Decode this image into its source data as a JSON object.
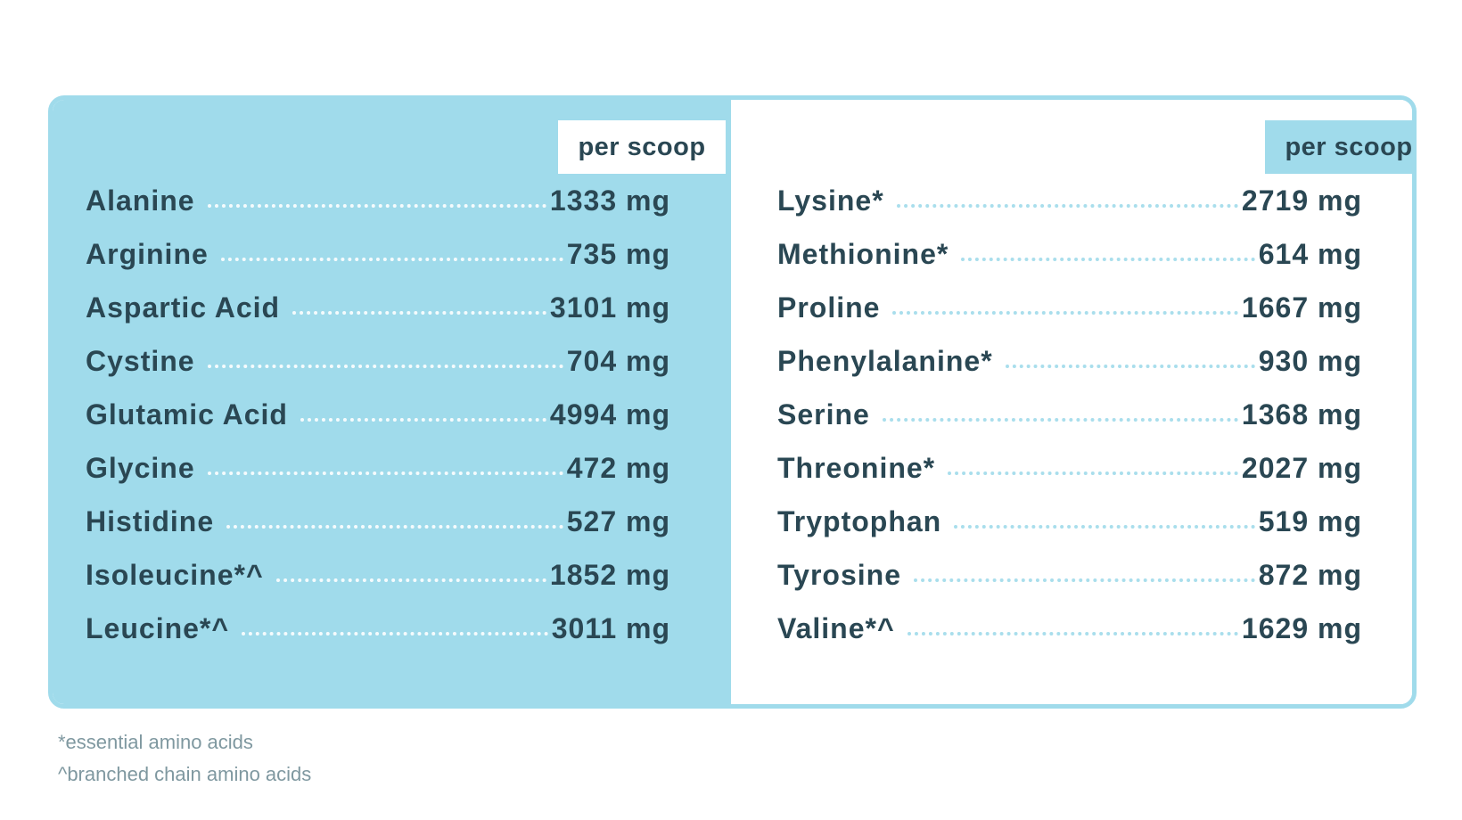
{
  "left_column": {
    "header": "per scoop",
    "rows": [
      {
        "name": "Alanine",
        "value": "1333 mg"
      },
      {
        "name": "Arginine",
        "value": "735 mg"
      },
      {
        "name": "Aspartic Acid",
        "value": "3101 mg"
      },
      {
        "name": "Cystine",
        "value": "704 mg"
      },
      {
        "name": "Glutamic Acid",
        "value": "4994 mg"
      },
      {
        "name": "Glycine",
        "value": "472 mg"
      },
      {
        "name": "Histidine",
        "value": "527 mg"
      },
      {
        "name": "Isoleucine*^",
        "value": "1852 mg"
      },
      {
        "name": "Leucine*^",
        "value": "3011 mg"
      }
    ]
  },
  "right_column": {
    "header": "per scoop",
    "rows": [
      {
        "name": "Lysine*",
        "value": "2719 mg"
      },
      {
        "name": "Methionine*",
        "value": "614 mg"
      },
      {
        "name": "Proline",
        "value": "1667 mg"
      },
      {
        "name": "Phenylalanine*",
        "value": "930 mg"
      },
      {
        "name": "Serine",
        "value": "1368 mg"
      },
      {
        "name": "Threonine*",
        "value": "2027 mg"
      },
      {
        "name": "Tryptophan",
        "value": "519 mg"
      },
      {
        "name": "Tyrosine",
        "value": "872 mg"
      },
      {
        "name": "Valine*^",
        "value": "1629 mg"
      }
    ]
  },
  "footnotes": {
    "essential": "*essential amino acids",
    "branched": "^branched chain amino acids"
  },
  "colors": {
    "accent": "#a0dbeb",
    "text": "#2a4753",
    "footnote": "#7f98a0"
  }
}
